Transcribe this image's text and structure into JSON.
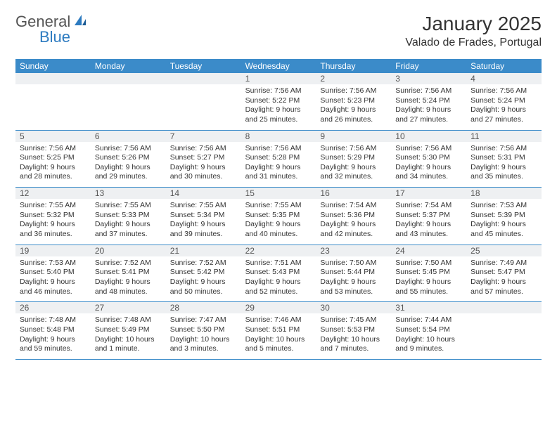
{
  "logo": {
    "general": "General",
    "blue": "Blue"
  },
  "header": {
    "title": "January 2025",
    "location": "Valado de Frades, Portugal"
  },
  "colors": {
    "header_bg": "#3b8bc9",
    "header_text": "#ffffff",
    "daynum_bg": "#eef0f2",
    "border": "#3b8bc9",
    "text": "#333333"
  },
  "daynames": [
    "Sunday",
    "Monday",
    "Tuesday",
    "Wednesday",
    "Thursday",
    "Friday",
    "Saturday"
  ],
  "weeks": [
    [
      {
        "n": "",
        "sr": "",
        "ss": "",
        "dl": ""
      },
      {
        "n": "",
        "sr": "",
        "ss": "",
        "dl": ""
      },
      {
        "n": "",
        "sr": "",
        "ss": "",
        "dl": ""
      },
      {
        "n": "1",
        "sr": "7:56 AM",
        "ss": "5:22 PM",
        "dl": "9 hours and 25 minutes."
      },
      {
        "n": "2",
        "sr": "7:56 AM",
        "ss": "5:23 PM",
        "dl": "9 hours and 26 minutes."
      },
      {
        "n": "3",
        "sr": "7:56 AM",
        "ss": "5:24 PM",
        "dl": "9 hours and 27 minutes."
      },
      {
        "n": "4",
        "sr": "7:56 AM",
        "ss": "5:24 PM",
        "dl": "9 hours and 27 minutes."
      }
    ],
    [
      {
        "n": "5",
        "sr": "7:56 AM",
        "ss": "5:25 PM",
        "dl": "9 hours and 28 minutes."
      },
      {
        "n": "6",
        "sr": "7:56 AM",
        "ss": "5:26 PM",
        "dl": "9 hours and 29 minutes."
      },
      {
        "n": "7",
        "sr": "7:56 AM",
        "ss": "5:27 PM",
        "dl": "9 hours and 30 minutes."
      },
      {
        "n": "8",
        "sr": "7:56 AM",
        "ss": "5:28 PM",
        "dl": "9 hours and 31 minutes."
      },
      {
        "n": "9",
        "sr": "7:56 AM",
        "ss": "5:29 PM",
        "dl": "9 hours and 32 minutes."
      },
      {
        "n": "10",
        "sr": "7:56 AM",
        "ss": "5:30 PM",
        "dl": "9 hours and 34 minutes."
      },
      {
        "n": "11",
        "sr": "7:56 AM",
        "ss": "5:31 PM",
        "dl": "9 hours and 35 minutes."
      }
    ],
    [
      {
        "n": "12",
        "sr": "7:55 AM",
        "ss": "5:32 PM",
        "dl": "9 hours and 36 minutes."
      },
      {
        "n": "13",
        "sr": "7:55 AM",
        "ss": "5:33 PM",
        "dl": "9 hours and 37 minutes."
      },
      {
        "n": "14",
        "sr": "7:55 AM",
        "ss": "5:34 PM",
        "dl": "9 hours and 39 minutes."
      },
      {
        "n": "15",
        "sr": "7:55 AM",
        "ss": "5:35 PM",
        "dl": "9 hours and 40 minutes."
      },
      {
        "n": "16",
        "sr": "7:54 AM",
        "ss": "5:36 PM",
        "dl": "9 hours and 42 minutes."
      },
      {
        "n": "17",
        "sr": "7:54 AM",
        "ss": "5:37 PM",
        "dl": "9 hours and 43 minutes."
      },
      {
        "n": "18",
        "sr": "7:53 AM",
        "ss": "5:39 PM",
        "dl": "9 hours and 45 minutes."
      }
    ],
    [
      {
        "n": "19",
        "sr": "7:53 AM",
        "ss": "5:40 PM",
        "dl": "9 hours and 46 minutes."
      },
      {
        "n": "20",
        "sr": "7:52 AM",
        "ss": "5:41 PM",
        "dl": "9 hours and 48 minutes."
      },
      {
        "n": "21",
        "sr": "7:52 AM",
        "ss": "5:42 PM",
        "dl": "9 hours and 50 minutes."
      },
      {
        "n": "22",
        "sr": "7:51 AM",
        "ss": "5:43 PM",
        "dl": "9 hours and 52 minutes."
      },
      {
        "n": "23",
        "sr": "7:50 AM",
        "ss": "5:44 PM",
        "dl": "9 hours and 53 minutes."
      },
      {
        "n": "24",
        "sr": "7:50 AM",
        "ss": "5:45 PM",
        "dl": "9 hours and 55 minutes."
      },
      {
        "n": "25",
        "sr": "7:49 AM",
        "ss": "5:47 PM",
        "dl": "9 hours and 57 minutes."
      }
    ],
    [
      {
        "n": "26",
        "sr": "7:48 AM",
        "ss": "5:48 PM",
        "dl": "9 hours and 59 minutes."
      },
      {
        "n": "27",
        "sr": "7:48 AM",
        "ss": "5:49 PM",
        "dl": "10 hours and 1 minute."
      },
      {
        "n": "28",
        "sr": "7:47 AM",
        "ss": "5:50 PM",
        "dl": "10 hours and 3 minutes."
      },
      {
        "n": "29",
        "sr": "7:46 AM",
        "ss": "5:51 PM",
        "dl": "10 hours and 5 minutes."
      },
      {
        "n": "30",
        "sr": "7:45 AM",
        "ss": "5:53 PM",
        "dl": "10 hours and 7 minutes."
      },
      {
        "n": "31",
        "sr": "7:44 AM",
        "ss": "5:54 PM",
        "dl": "10 hours and 9 minutes."
      },
      {
        "n": "",
        "sr": "",
        "ss": "",
        "dl": ""
      }
    ]
  ],
  "labels": {
    "sunrise": "Sunrise:",
    "sunset": "Sunset:",
    "daylight": "Daylight:"
  }
}
